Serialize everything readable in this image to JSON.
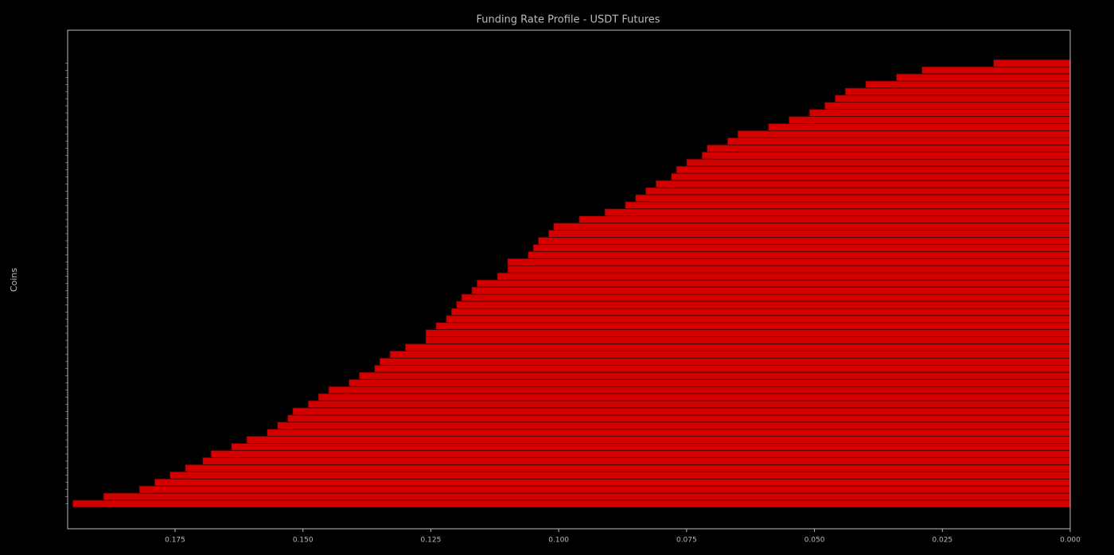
{
  "chart_data": {
    "type": "barh",
    "title": "Funding Rate Profile - USDT Futures",
    "y_label": "Coins",
    "color": "#d40000",
    "edge_color": "#4a0000",
    "categories": [
      null,
      null,
      null,
      null,
      null,
      null,
      null,
      null,
      null,
      null,
      null,
      null,
      null,
      null,
      null,
      null,
      null,
      null,
      null,
      null,
      null,
      null,
      null,
      null,
      null,
      null,
      null,
      null,
      null,
      null,
      null,
      null,
      null,
      null,
      null,
      null,
      null,
      null,
      null,
      null,
      null,
      null,
      null,
      null,
      null,
      null,
      null,
      null,
      null,
      null,
      null,
      null,
      null,
      null,
      null,
      null,
      null,
      null,
      null,
      null,
      null,
      null,
      null
    ],
    "values": [
      0.195,
      0.189,
      0.182,
      0.179,
      0.176,
      0.173,
      0.1696,
      0.168,
      0.164,
      0.161,
      0.157,
      0.155,
      0.153,
      0.152,
      0.149,
      0.147,
      0.145,
      0.141,
      0.139,
      0.136,
      0.135,
      0.133,
      0.13,
      0.126,
      0.126,
      0.124,
      0.122,
      0.121,
      0.12,
      0.119,
      0.117,
      0.116,
      0.112,
      0.11,
      0.11,
      0.106,
      0.105,
      0.104,
      0.102,
      0.101,
      0.096,
      0.091,
      0.087,
      0.085,
      0.083,
      0.081,
      0.078,
      0.077,
      0.075,
      0.072,
      0.071,
      0.067,
      0.065,
      0.059,
      0.055,
      0.051,
      0.048,
      0.046,
      0.044,
      0.04,
      0.034,
      0.029,
      0.015
    ],
    "xlim": [
      0.196,
      0
    ],
    "xticks": [
      {
        "value": 0.175,
        "label": "0.175"
      },
      {
        "value": 0.15,
        "label": "0.150"
      },
      {
        "value": 0.125,
        "label": "0.125"
      },
      {
        "value": 0.1,
        "label": "0.100"
      },
      {
        "value": 0.075,
        "label": "0.075"
      },
      {
        "value": 0.05,
        "label": "0.050"
      },
      {
        "value": 0.025,
        "label": "0.025"
      },
      {
        "value": 0,
        "label": "0.000"
      }
    ],
    "grid": false
  }
}
